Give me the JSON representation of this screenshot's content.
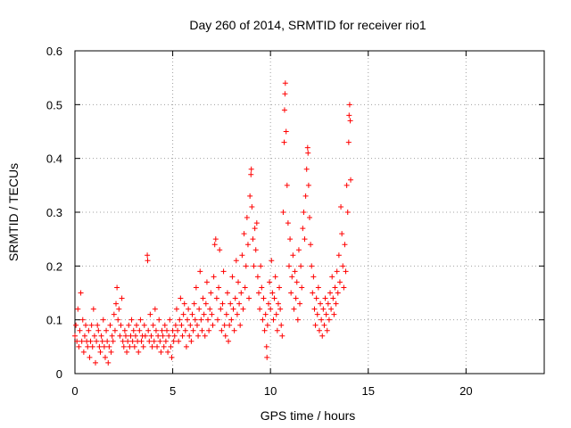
{
  "chart_data": {
    "type": "scatter",
    "title": "Day 260 of 2014, SRMTID for receiver rio1",
    "xlabel": "GPS time / hours",
    "ylabel": "SRMTID / TECUs",
    "xlim": [
      0,
      24
    ],
    "ylim": [
      0,
      0.6
    ],
    "x_ticks": [
      "0",
      "5",
      "10",
      "15",
      "20"
    ],
    "y_ticks": [
      "0",
      "0.1",
      "0.2",
      "0.3",
      "0.4",
      "0.5",
      "0.6"
    ],
    "x_tick_values": [
      0,
      5,
      10,
      15,
      20
    ],
    "y_tick_values": [
      0,
      0.1,
      0.2,
      0.3,
      0.4,
      0.5,
      0.6
    ],
    "grid": true,
    "marker": "+",
    "series": [
      {
        "name": "rio1",
        "color": "#ff0000",
        "points": [
          [
            0.0,
            0.07
          ],
          [
            0.05,
            0.09
          ],
          [
            0.1,
            0.06
          ],
          [
            0.15,
            0.12
          ],
          [
            0.2,
            0.05
          ],
          [
            0.25,
            0.08
          ],
          [
            0.3,
            0.15
          ],
          [
            0.35,
            0.06
          ],
          [
            0.4,
            0.1
          ],
          [
            0.45,
            0.04
          ],
          [
            0.5,
            0.07
          ],
          [
            0.55,
            0.09
          ],
          [
            0.6,
            0.06
          ],
          [
            0.65,
            0.05
          ],
          [
            0.7,
            0.08
          ],
          [
            0.75,
            0.03
          ],
          [
            0.8,
            0.06
          ],
          [
            0.85,
            0.09
          ],
          [
            0.9,
            0.05
          ],
          [
            0.95,
            0.12
          ],
          [
            1.0,
            0.07
          ],
          [
            1.05,
            0.02
          ],
          [
            1.1,
            0.06
          ],
          [
            1.15,
            0.09
          ],
          [
            1.2,
            0.08
          ],
          [
            1.25,
            0.05
          ],
          [
            1.3,
            0.04
          ],
          [
            1.35,
            0.07
          ],
          [
            1.4,
            0.06
          ],
          [
            1.45,
            0.1
          ],
          [
            1.5,
            0.05
          ],
          [
            1.55,
            0.03
          ],
          [
            1.6,
            0.08
          ],
          [
            1.65,
            0.06
          ],
          [
            1.7,
            0.02
          ],
          [
            1.75,
            0.05
          ],
          [
            1.8,
            0.09
          ],
          [
            1.85,
            0.04
          ],
          [
            1.9,
            0.07
          ],
          [
            1.95,
            0.06
          ],
          [
            2.0,
            0.11
          ],
          [
            2.05,
            0.08
          ],
          [
            2.1,
            0.13
          ],
          [
            2.15,
            0.16
          ],
          [
            2.2,
            0.1
          ],
          [
            2.25,
            0.12
          ],
          [
            2.3,
            0.07
          ],
          [
            2.35,
            0.09
          ],
          [
            2.4,
            0.14
          ],
          [
            2.45,
            0.06
          ],
          [
            2.5,
            0.05
          ],
          [
            2.55,
            0.08
          ],
          [
            2.6,
            0.07
          ],
          [
            2.65,
            0.04
          ],
          [
            2.7,
            0.06
          ],
          [
            2.75,
            0.09
          ],
          [
            2.8,
            0.05
          ],
          [
            2.85,
            0.07
          ],
          [
            2.9,
            0.1
          ],
          [
            2.95,
            0.06
          ],
          [
            3.0,
            0.08
          ],
          [
            3.05,
            0.05
          ],
          [
            3.1,
            0.07
          ],
          [
            3.15,
            0.09
          ],
          [
            3.2,
            0.06
          ],
          [
            3.25,
            0.04
          ],
          [
            3.3,
            0.08
          ],
          [
            3.35,
            0.1
          ],
          [
            3.4,
            0.06
          ],
          [
            3.45,
            0.07
          ],
          [
            3.5,
            0.05
          ],
          [
            3.55,
            0.09
          ],
          [
            3.6,
            0.07
          ],
          [
            3.7,
            0.22
          ],
          [
            3.72,
            0.21
          ],
          [
            3.75,
            0.08
          ],
          [
            3.8,
            0.06
          ],
          [
            3.85,
            0.11
          ],
          [
            3.9,
            0.07
          ],
          [
            3.95,
            0.05
          ],
          [
            4.0,
            0.09
          ],
          [
            4.05,
            0.06
          ],
          [
            4.1,
            0.12
          ],
          [
            4.15,
            0.08
          ],
          [
            4.2,
            0.05
          ],
          [
            4.25,
            0.07
          ],
          [
            4.3,
            0.1
          ],
          [
            4.35,
            0.06
          ],
          [
            4.4,
            0.04
          ],
          [
            4.45,
            0.08
          ],
          [
            4.5,
            0.07
          ],
          [
            4.55,
            0.05
          ],
          [
            4.6,
            0.09
          ],
          [
            4.65,
            0.06
          ],
          [
            4.7,
            0.08
          ],
          [
            4.75,
            0.04
          ],
          [
            4.8,
            0.07
          ],
          [
            4.85,
            0.1
          ],
          [
            4.9,
            0.05
          ],
          [
            4.95,
            0.03
          ],
          [
            5.0,
            0.08
          ],
          [
            5.05,
            0.06
          ],
          [
            5.1,
            0.07
          ],
          [
            5.15,
            0.09
          ],
          [
            5.2,
            0.12
          ],
          [
            5.25,
            0.08
          ],
          [
            5.3,
            0.06
          ],
          [
            5.35,
            0.1
          ],
          [
            5.4,
            0.14
          ],
          [
            5.45,
            0.09
          ],
          [
            5.5,
            0.07
          ],
          [
            5.55,
            0.11
          ],
          [
            5.6,
            0.13
          ],
          [
            5.65,
            0.08
          ],
          [
            5.7,
            0.05
          ],
          [
            5.75,
            0.1
          ],
          [
            5.8,
            0.12
          ],
          [
            5.85,
            0.07
          ],
          [
            5.9,
            0.09
          ],
          [
            5.95,
            0.06
          ],
          [
            6.0,
            0.11
          ],
          [
            6.05,
            0.08
          ],
          [
            6.1,
            0.13
          ],
          [
            6.15,
            0.1
          ],
          [
            6.2,
            0.16
          ],
          [
            6.25,
            0.09
          ],
          [
            6.3,
            0.07
          ],
          [
            6.35,
            0.12
          ],
          [
            6.4,
            0.19
          ],
          [
            6.45,
            0.1
          ],
          [
            6.5,
            0.08
          ],
          [
            6.55,
            0.14
          ],
          [
            6.6,
            0.11
          ],
          [
            6.65,
            0.07
          ],
          [
            6.7,
            0.13
          ],
          [
            6.75,
            0.17
          ],
          [
            6.8,
            0.1
          ],
          [
            6.85,
            0.08
          ],
          [
            6.9,
            0.12
          ],
          [
            6.95,
            0.15
          ],
          [
            7.0,
            0.11
          ],
          [
            7.05,
            0.09
          ],
          [
            7.1,
            0.18
          ],
          [
            7.15,
            0.24
          ],
          [
            7.2,
            0.25
          ],
          [
            7.25,
            0.14
          ],
          [
            7.3,
            0.1
          ],
          [
            7.35,
            0.16
          ],
          [
            7.4,
            0.23
          ],
          [
            7.45,
            0.12
          ],
          [
            7.5,
            0.08
          ],
          [
            7.55,
            0.13
          ],
          [
            7.6,
            0.19
          ],
          [
            7.65,
            0.09
          ],
          [
            7.7,
            0.07
          ],
          [
            7.75,
            0.11
          ],
          [
            7.8,
            0.15
          ],
          [
            7.85,
            0.06
          ],
          [
            7.9,
            0.09
          ],
          [
            7.95,
            0.13
          ],
          [
            8.0,
            0.1
          ],
          [
            8.05,
            0.18
          ],
          [
            8.1,
            0.12
          ],
          [
            8.15,
            0.08
          ],
          [
            8.2,
            0.14
          ],
          [
            8.25,
            0.21
          ],
          [
            8.3,
            0.11
          ],
          [
            8.35,
            0.17
          ],
          [
            8.4,
            0.13
          ],
          [
            8.45,
            0.09
          ],
          [
            8.5,
            0.15
          ],
          [
            8.55,
            0.22
          ],
          [
            8.6,
            0.12
          ],
          [
            8.65,
            0.26
          ],
          [
            8.7,
            0.16
          ],
          [
            8.75,
            0.2
          ],
          [
            8.8,
            0.29
          ],
          [
            8.85,
            0.24
          ],
          [
            8.9,
            0.14
          ],
          [
            8.95,
            0.33
          ],
          [
            9.0,
            0.37
          ],
          [
            9.02,
            0.38
          ],
          [
            9.05,
            0.31
          ],
          [
            9.1,
            0.25
          ],
          [
            9.15,
            0.2
          ],
          [
            9.2,
            0.27
          ],
          [
            9.25,
            0.23
          ],
          [
            9.3,
            0.28
          ],
          [
            9.35,
            0.18
          ],
          [
            9.4,
            0.15
          ],
          [
            9.45,
            0.12
          ],
          [
            9.5,
            0.2
          ],
          [
            9.55,
            0.16
          ],
          [
            9.6,
            0.1
          ],
          [
            9.65,
            0.14
          ],
          [
            9.7,
            0.08
          ],
          [
            9.75,
            0.11
          ],
          [
            9.8,
            0.05
          ],
          [
            9.82,
            0.03
          ],
          [
            9.85,
            0.09
          ],
          [
            9.9,
            0.13
          ],
          [
            9.95,
            0.17
          ],
          [
            10.0,
            0.12
          ],
          [
            10.05,
            0.21
          ],
          [
            10.1,
            0.15
          ],
          [
            10.15,
            0.1
          ],
          [
            10.2,
            0.14
          ],
          [
            10.25,
            0.18
          ],
          [
            10.3,
            0.11
          ],
          [
            10.35,
            0.08
          ],
          [
            10.4,
            0.13
          ],
          [
            10.45,
            0.16
          ],
          [
            10.5,
            0.12
          ],
          [
            10.55,
            0.09
          ],
          [
            10.6,
            0.07
          ],
          [
            10.65,
            0.3
          ],
          [
            10.7,
            0.43
          ],
          [
            10.72,
            0.49
          ],
          [
            10.74,
            0.52
          ],
          [
            10.76,
            0.54
          ],
          [
            10.8,
            0.45
          ],
          [
            10.85,
            0.35
          ],
          [
            10.9,
            0.28
          ],
          [
            10.95,
            0.2
          ],
          [
            11.0,
            0.25
          ],
          [
            11.05,
            0.15
          ],
          [
            11.1,
            0.18
          ],
          [
            11.15,
            0.22
          ],
          [
            11.2,
            0.12
          ],
          [
            11.25,
            0.19
          ],
          [
            11.3,
            0.14
          ],
          [
            11.35,
            0.17
          ],
          [
            11.4,
            0.1
          ],
          [
            11.45,
            0.23
          ],
          [
            11.5,
            0.13
          ],
          [
            11.55,
            0.2
          ],
          [
            11.6,
            0.16
          ],
          [
            11.65,
            0.27
          ],
          [
            11.7,
            0.3
          ],
          [
            11.75,
            0.25
          ],
          [
            11.8,
            0.33
          ],
          [
            11.85,
            0.38
          ],
          [
            11.9,
            0.42
          ],
          [
            11.92,
            0.41
          ],
          [
            11.95,
            0.35
          ],
          [
            12.0,
            0.29
          ],
          [
            12.05,
            0.24
          ],
          [
            12.1,
            0.2
          ],
          [
            12.15,
            0.15
          ],
          [
            12.2,
            0.18
          ],
          [
            12.25,
            0.12
          ],
          [
            12.3,
            0.09
          ],
          [
            12.35,
            0.14
          ],
          [
            12.4,
            0.11
          ],
          [
            12.45,
            0.16
          ],
          [
            12.5,
            0.08
          ],
          [
            12.55,
            0.13
          ],
          [
            12.6,
            0.1
          ],
          [
            12.65,
            0.07
          ],
          [
            12.7,
            0.12
          ],
          [
            12.75,
            0.09
          ],
          [
            12.8,
            0.14
          ],
          [
            12.85,
            0.11
          ],
          [
            12.9,
            0.08
          ],
          [
            12.95,
            0.13
          ],
          [
            13.0,
            0.1
          ],
          [
            13.05,
            0.15
          ],
          [
            13.1,
            0.12
          ],
          [
            13.15,
            0.18
          ],
          [
            13.2,
            0.14
          ],
          [
            13.25,
            0.11
          ],
          [
            13.3,
            0.16
          ],
          [
            13.35,
            0.13
          ],
          [
            13.4,
            0.19
          ],
          [
            13.45,
            0.15
          ],
          [
            13.5,
            0.22
          ],
          [
            13.55,
            0.17
          ],
          [
            13.6,
            0.31
          ],
          [
            13.65,
            0.26
          ],
          [
            13.7,
            0.2
          ],
          [
            13.75,
            0.16
          ],
          [
            13.8,
            0.24
          ],
          [
            13.85,
            0.19
          ],
          [
            13.9,
            0.35
          ],
          [
            13.95,
            0.3
          ],
          [
            14.0,
            0.43
          ],
          [
            14.02,
            0.48
          ],
          [
            14.05,
            0.5
          ],
          [
            14.08,
            0.47
          ],
          [
            14.1,
            0.36
          ]
        ]
      }
    ]
  }
}
